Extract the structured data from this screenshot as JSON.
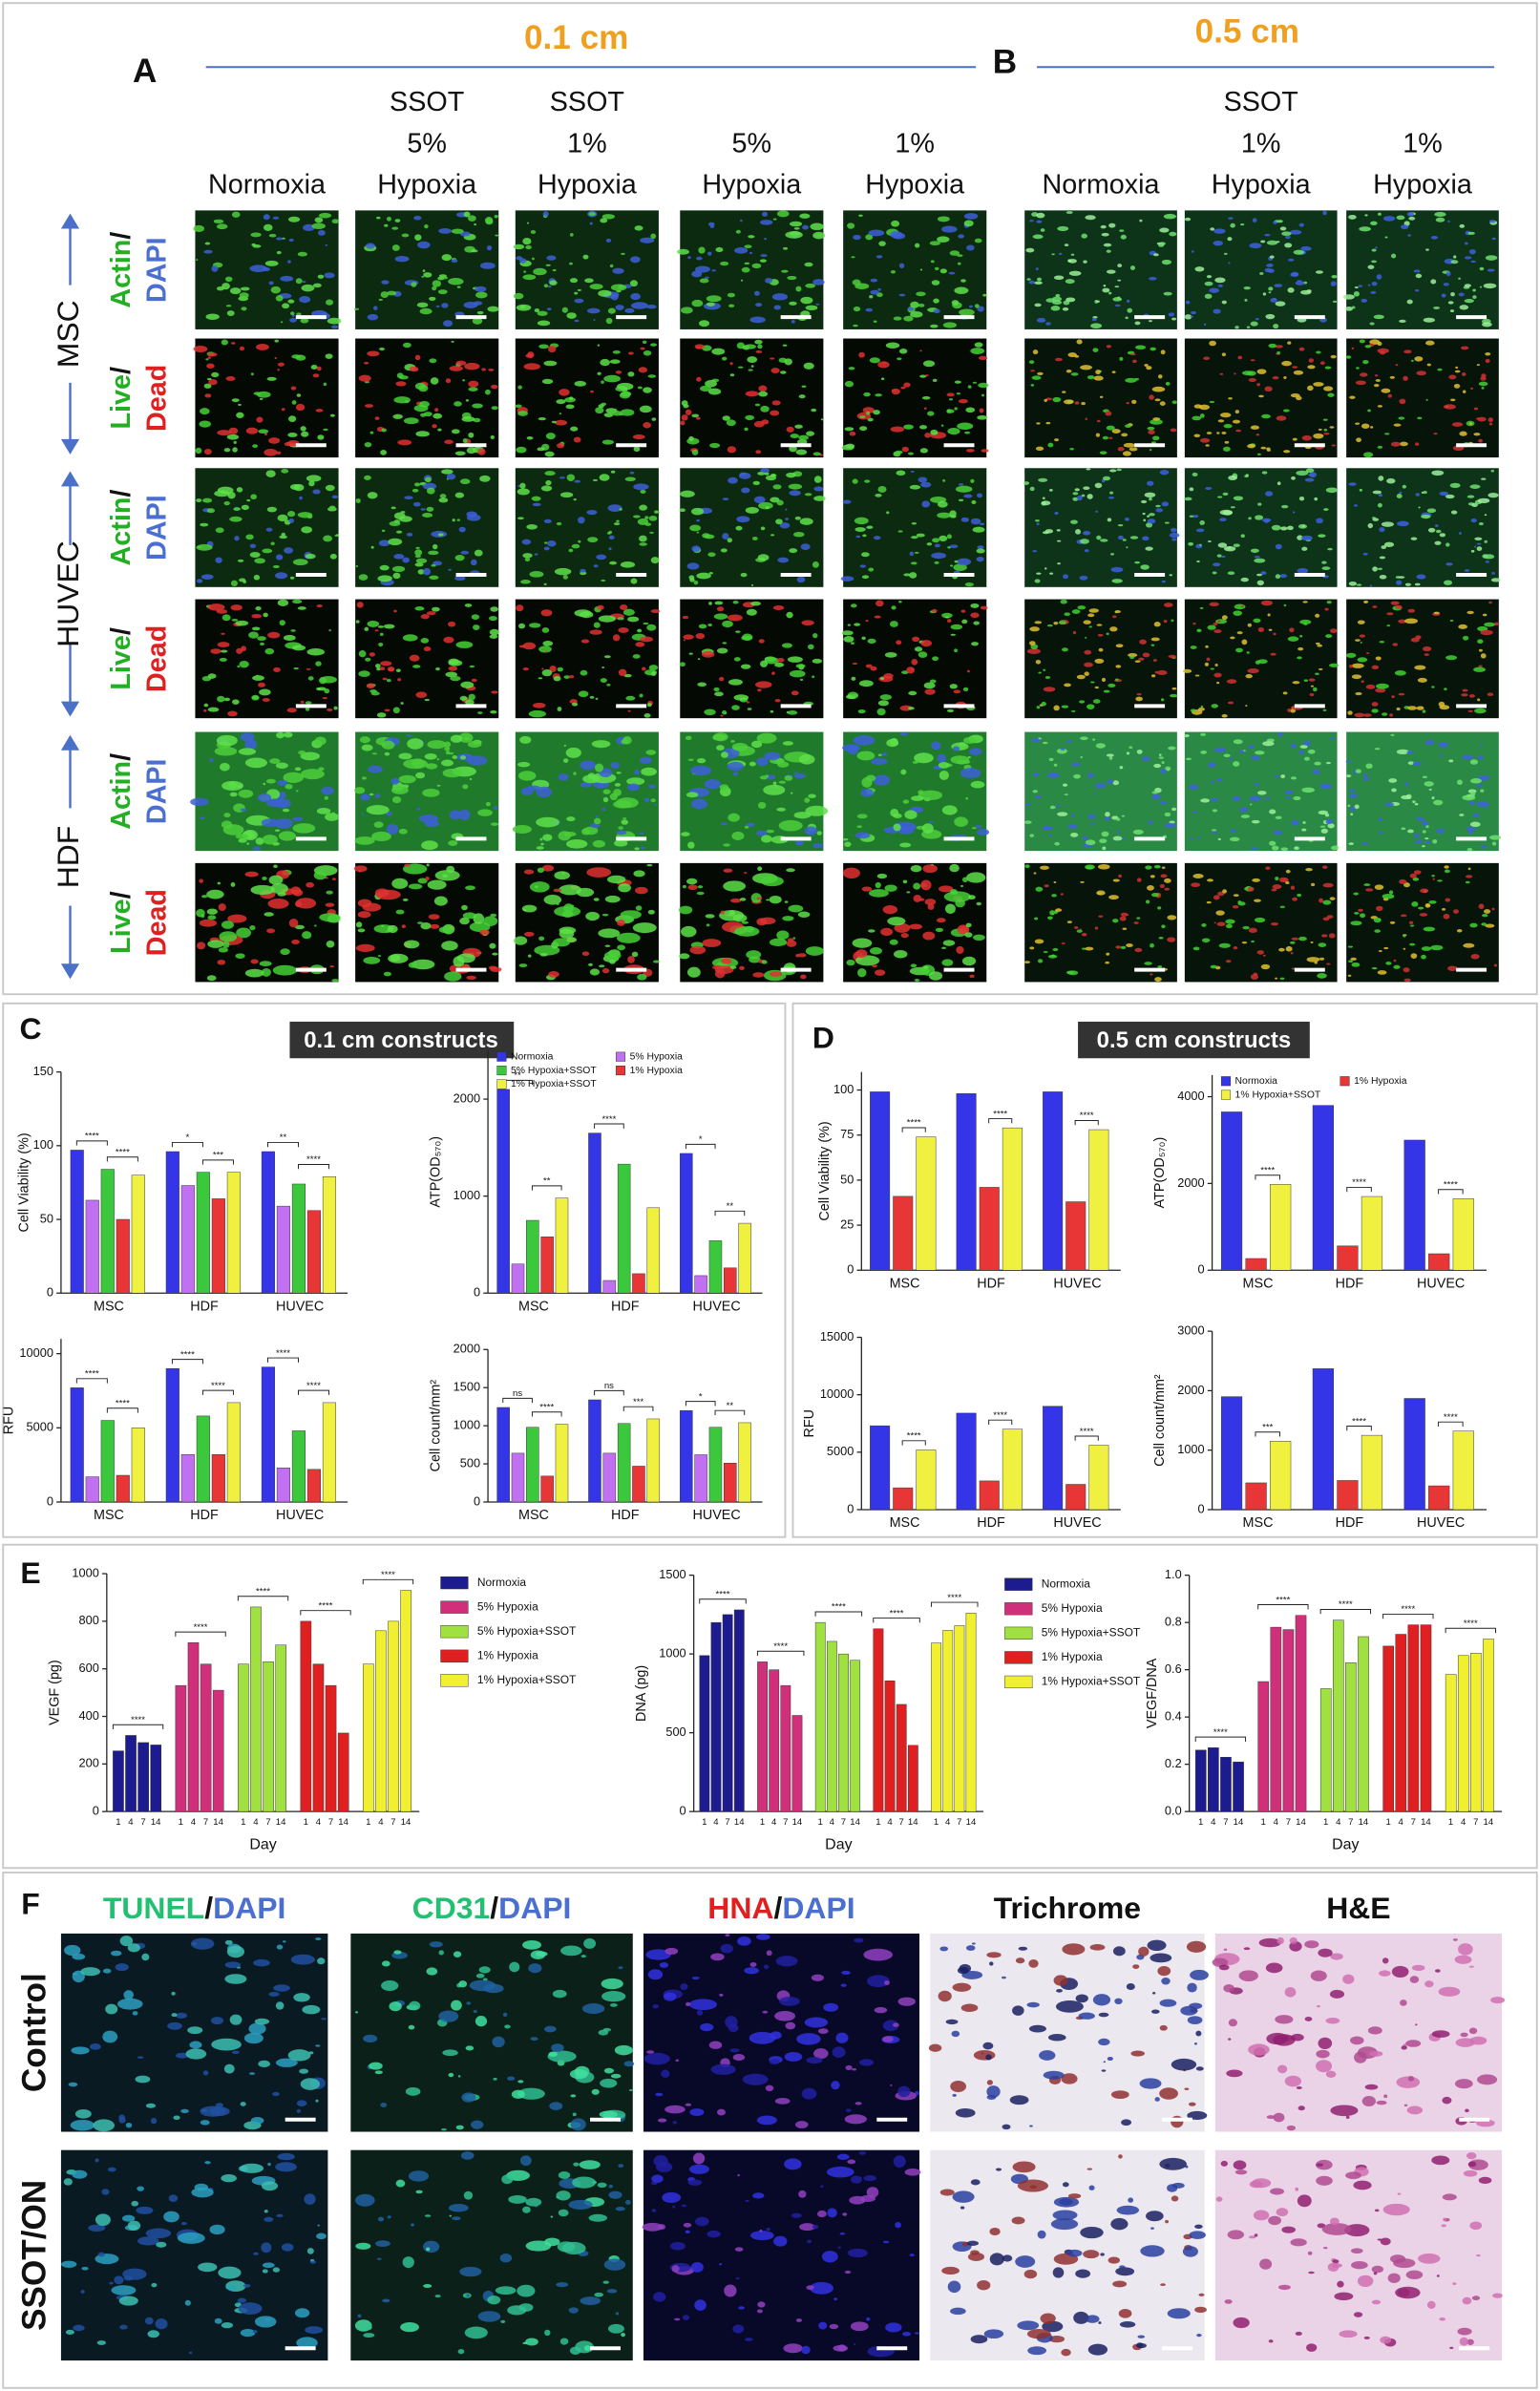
{
  "panel_a": {
    "label": "A",
    "size": "0.1 cm",
    "columns": [
      [
        "Normoxia"
      ],
      [
        "SSOT",
        "5%",
        "Hypoxia"
      ],
      [
        "SSOT",
        "1%",
        "Hypoxia"
      ],
      [
        "5%",
        "Hypoxia"
      ],
      [
        "1%",
        "Hypoxia"
      ]
    ]
  },
  "panel_b": {
    "label": "B",
    "size": "0.5 cm",
    "columns": [
      [
        "Normoxia"
      ],
      [
        "SSOT",
        "1%",
        "Hypoxia"
      ],
      [
        "1%",
        "Hypoxia"
      ]
    ]
  },
  "cell_types": [
    "MSC",
    "HUVEC",
    "HDF"
  ],
  "stains": [
    [
      "Actin",
      "/",
      "DAPI"
    ],
    [
      "Live",
      "/",
      "Dead"
    ]
  ],
  "panel_c": {
    "label": "C",
    "title": "0.1 cm constructs"
  },
  "panel_d": {
    "label": "D",
    "title": "0.5 cm constructs"
  },
  "panel_e": {
    "label": "E"
  },
  "panel_f": {
    "label": "F",
    "columns": [
      [
        "TUNEL",
        "/",
        "DAPI"
      ],
      [
        "CD31",
        "/",
        "DAPI"
      ],
      [
        "HNA",
        "/",
        "DAPI"
      ],
      [
        "Trichrome"
      ],
      [
        "H&E"
      ]
    ],
    "rows": [
      "Control",
      "SSOT/ON"
    ]
  },
  "chart_data": [
    {
      "type": "bar",
      "ylabel": "Cell Viability (%)",
      "categories": [
        "MSC",
        "HDF",
        "HUVEC"
      ],
      "series": [
        {
          "color": "#3535e8",
          "values": [
            97,
            96,
            96
          ]
        },
        {
          "color": "#c070f0",
          "values": [
            63,
            73,
            59
          ]
        },
        {
          "color": "#3cc83c",
          "values": [
            84,
            82,
            74
          ]
        },
        {
          "color": "#e83535",
          "values": [
            50,
            64,
            56
          ]
        },
        {
          "color": "#f0f040",
          "values": [
            80,
            82,
            79
          ]
        }
      ],
      "ylim": [
        0,
        150
      ],
      "yticks": [
        0,
        50,
        100,
        150
      ],
      "annotations": [
        [
          "****",
          "****"
        ],
        [
          "*",
          "***"
        ],
        [
          "**",
          "****"
        ]
      ]
    },
    {
      "type": "bar",
      "ylabel": "ATP(OD₅₇₀)",
      "categories": [
        "MSC",
        "HDF",
        "HUVEC"
      ],
      "legend": "top",
      "series": [
        {
          "name": "Normoxia",
          "color": "#3535e8",
          "values": [
            2100,
            1650,
            1440
          ]
        },
        {
          "name": "5% Hypoxia",
          "color": "#c070f0",
          "values": [
            300,
            130,
            180
          ]
        },
        {
          "name": "5% Hypoxia+SSOT",
          "color": "#3cc83c",
          "values": [
            750,
            1330,
            540
          ]
        },
        {
          "name": "1% Hypoxia",
          "color": "#e83535",
          "values": [
            580,
            200,
            260
          ]
        },
        {
          "name": "1% Hypoxia+SSOT",
          "color": "#f0f040",
          "values": [
            980,
            880,
            720
          ]
        }
      ],
      "ylim": [
        0,
        2500
      ],
      "yticks": [
        0,
        1000,
        2000
      ],
      "annotations": [
        [
          "**",
          "**"
        ],
        [
          "****"
        ],
        [
          "*",
          "**"
        ]
      ]
    },
    {
      "type": "bar",
      "ylabel": "RFU",
      "categories": [
        "MSC",
        "HDF",
        "HUVEC"
      ],
      "series": [
        {
          "color": "#3535e8",
          "values": [
            7700,
            9000,
            9100
          ]
        },
        {
          "color": "#c070f0",
          "values": [
            1700,
            3200,
            2300
          ]
        },
        {
          "color": "#3cc83c",
          "values": [
            5500,
            5800,
            4800
          ]
        },
        {
          "color": "#e83535",
          "values": [
            1800,
            3200,
            2200
          ]
        },
        {
          "color": "#f0f040",
          "values": [
            5000,
            6700,
            6700
          ]
        }
      ],
      "ylim": [
        0,
        11000
      ],
      "yticks": [
        0,
        5000,
        10000
      ],
      "annotations": [
        [
          "****",
          "****"
        ],
        [
          "****",
          "****"
        ],
        [
          "****",
          "****"
        ]
      ]
    },
    {
      "type": "bar",
      "ylabel": "Cell count/mm²",
      "categories": [
        "MSC",
        "HDF",
        "HUVEC"
      ],
      "series": [
        {
          "color": "#3535e8",
          "values": [
            1240,
            1340,
            1200
          ]
        },
        {
          "color": "#c070f0",
          "values": [
            640,
            640,
            620
          ]
        },
        {
          "color": "#3cc83c",
          "values": [
            980,
            1030,
            980
          ]
        },
        {
          "color": "#e83535",
          "values": [
            340,
            470,
            510
          ]
        },
        {
          "color": "#f0f040",
          "values": [
            1020,
            1090,
            1040
          ]
        }
      ],
      "ylim": [
        0,
        2000
      ],
      "yticks": [
        0,
        500,
        1000,
        1500,
        2000
      ],
      "annotations": [
        [
          "ns",
          "****"
        ],
        [
          "ns",
          "***"
        ],
        [
          "*",
          "**"
        ]
      ]
    },
    {
      "type": "bar",
      "ylabel": "Cell Viability (%)",
      "categories": [
        "MSC",
        "HDF",
        "HUVEC"
      ],
      "series": [
        {
          "color": "#3535e8",
          "values": [
            99,
            98,
            99
          ]
        },
        {
          "color": "#e83535",
          "values": [
            41,
            46,
            38
          ]
        },
        {
          "color": "#f0f040",
          "values": [
            74,
            79,
            78
          ]
        }
      ],
      "ylim": [
        0,
        110
      ],
      "yticks": [
        0,
        25,
        50,
        75,
        100
      ],
      "annotations": [
        [
          "****"
        ],
        [
          "****"
        ],
        [
          "****"
        ]
      ]
    },
    {
      "type": "bar",
      "ylabel": "ATP(OD₅₇₀)",
      "categories": [
        "MSC",
        "HDF",
        "HUVEC"
      ],
      "legend": "top",
      "series": [
        {
          "name": "Normoxia",
          "color": "#3535e8",
          "values": [
            3650,
            3800,
            3000
          ]
        },
        {
          "name": "1% Hypoxia",
          "color": "#e83535",
          "values": [
            270,
            560,
            380
          ]
        },
        {
          "name": "1% Hypoxia+SSOT",
          "color": "#f0f040",
          "values": [
            1980,
            1700,
            1650
          ]
        }
      ],
      "ylim": [
        0,
        4500
      ],
      "yticks": [
        0,
        2000,
        4000
      ],
      "annotations": [
        [
          "****"
        ],
        [
          "****"
        ],
        [
          "****"
        ]
      ]
    },
    {
      "type": "bar",
      "ylabel": "RFU",
      "categories": [
        "MSC",
        "HDF",
        "HUVEC"
      ],
      "series": [
        {
          "color": "#3535e8",
          "values": [
            7300,
            8400,
            9000
          ]
        },
        {
          "color": "#e83535",
          "values": [
            1900,
            2500,
            2200
          ]
        },
        {
          "color": "#f0f040",
          "values": [
            5200,
            7000,
            5600
          ]
        }
      ],
      "ylim": [
        0,
        15000
      ],
      "yticks": [
        0,
        5000,
        10000,
        15000
      ],
      "annotations": [
        [
          "****"
        ],
        [
          "****"
        ],
        [
          "****"
        ]
      ]
    },
    {
      "type": "bar",
      "ylabel": "Cell count/mm²",
      "categories": [
        "MSC",
        "HDF",
        "HUVEC"
      ],
      "series": [
        {
          "color": "#3535e8",
          "values": [
            1900,
            2370,
            1870
          ]
        },
        {
          "color": "#e83535",
          "values": [
            450,
            490,
            400
          ]
        },
        {
          "color": "#f0f040",
          "values": [
            1150,
            1250,
            1320
          ]
        }
      ],
      "ylim": [
        0,
        3000
      ],
      "yticks": [
        0,
        1000,
        2000,
        3000
      ],
      "annotations": [
        [
          "***"
        ],
        [
          "****"
        ],
        [
          "****"
        ]
      ]
    },
    {
      "type": "bar",
      "ylabel": "VEGF (pg)",
      "xlabel": "Day",
      "categories": [
        "1",
        "4",
        "7",
        "14"
      ],
      "legend": "right",
      "series": [
        {
          "name": "Normoxia",
          "color": "#1c1c90",
          "values": [
            255,
            320,
            290,
            280
          ]
        },
        {
          "name": "5% Hypoxia",
          "color": "#d0307a",
          "values": [
            530,
            710,
            620,
            510
          ]
        },
        {
          "name": "5% Hypoxia+SSOT",
          "color": "#a0e040",
          "values": [
            620,
            860,
            630,
            700
          ]
        },
        {
          "name": "1% Hypoxia",
          "color": "#e02020",
          "values": [
            800,
            620,
            530,
            330
          ]
        },
        {
          "name": "1% Hypoxia+SSOT",
          "color": "#f0f030",
          "values": [
            620,
            760,
            800,
            930
          ]
        }
      ],
      "ylim": [
        0,
        1000
      ],
      "yticks": [
        0,
        200,
        400,
        600,
        800,
        1000
      ],
      "annotations": [
        "****",
        "****",
        "****",
        "****",
        "****"
      ]
    },
    {
      "type": "bar",
      "ylabel": "DNA (pg)",
      "xlabel": "Day",
      "categories": [
        "1",
        "4",
        "7",
        "14"
      ],
      "legend": "right",
      "series": [
        {
          "name": "Normoxia",
          "color": "#1c1c90",
          "values": [
            990,
            1200,
            1250,
            1280
          ]
        },
        {
          "name": "5% Hypoxia",
          "color": "#d0307a",
          "values": [
            950,
            900,
            800,
            610
          ]
        },
        {
          "name": "5% Hypoxia+SSOT",
          "color": "#a0e040",
          "values": [
            1200,
            1080,
            1000,
            960
          ]
        },
        {
          "name": "1% Hypoxia",
          "color": "#e02020",
          "values": [
            1160,
            830,
            680,
            420
          ]
        },
        {
          "name": "1% Hypoxia+SSOT",
          "color": "#f0f030",
          "values": [
            1070,
            1150,
            1180,
            1260
          ]
        }
      ],
      "ylim": [
        0,
        1500
      ],
      "yticks": [
        0,
        500,
        1000,
        1500
      ],
      "annotations": [
        "****",
        "****",
        "****",
        "****",
        "****"
      ]
    },
    {
      "type": "bar",
      "ylabel": "VEGF/DNA",
      "xlabel": "Day",
      "categories": [
        "1",
        "4",
        "7",
        "14"
      ],
      "series": [
        {
          "color": "#1c1c90",
          "values": [
            0.26,
            0.27,
            0.23,
            0.21
          ]
        },
        {
          "color": "#d0307a",
          "values": [
            0.55,
            0.78,
            0.77,
            0.83
          ]
        },
        {
          "color": "#a0e040",
          "values": [
            0.52,
            0.81,
            0.63,
            0.74
          ]
        },
        {
          "color": "#e02020",
          "values": [
            0.7,
            0.75,
            0.79,
            0.79
          ]
        },
        {
          "color": "#f0f030",
          "values": [
            0.58,
            0.66,
            0.67,
            0.73
          ]
        }
      ],
      "ylim": [
        0,
        1.0
      ],
      "yticks": [
        {
          "value": 0,
          "label": "0.0"
        },
        0.2,
        0.4,
        0.6,
        0.8,
        {
          "value": 1.0,
          "label": "1.0"
        }
      ],
      "annotations": [
        "****",
        "****",
        "****",
        "****",
        "****"
      ]
    }
  ]
}
